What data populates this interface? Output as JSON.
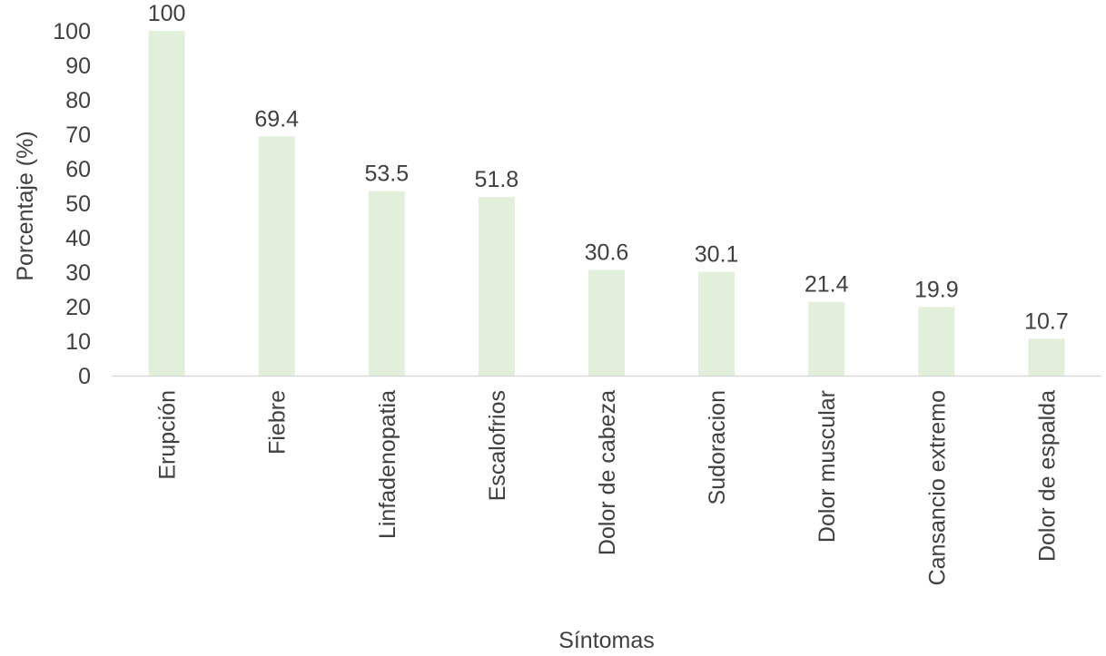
{
  "chart_data": {
    "type": "bar",
    "title": "",
    "xlabel": "Síntomas",
    "ylabel": "Porcentaje (%)",
    "ylim": [
      0,
      100
    ],
    "yticks": [
      0,
      10,
      20,
      30,
      40,
      50,
      60,
      70,
      80,
      90,
      100
    ],
    "categories": [
      "Erupción",
      "Fiebre",
      "Linfadenopatia",
      "Escalofrios",
      "Dolor de cabeza",
      "Sudoracion",
      "Dolor muscular",
      "Cansancio extremo",
      "Dolor de espalda"
    ],
    "values": [
      100,
      69.4,
      53.5,
      51.8,
      30.6,
      30.1,
      21.4,
      19.9,
      10.7
    ],
    "data_labels": [
      "100",
      "69.4",
      "53.5",
      "51.8",
      "30.6",
      "30.1",
      "21.4",
      "19.9",
      "10.7"
    ],
    "grid": false,
    "legend": "none",
    "colors": {
      "bar": "#e2efda",
      "text": "#404040",
      "axis": "#d9d9d9"
    }
  }
}
